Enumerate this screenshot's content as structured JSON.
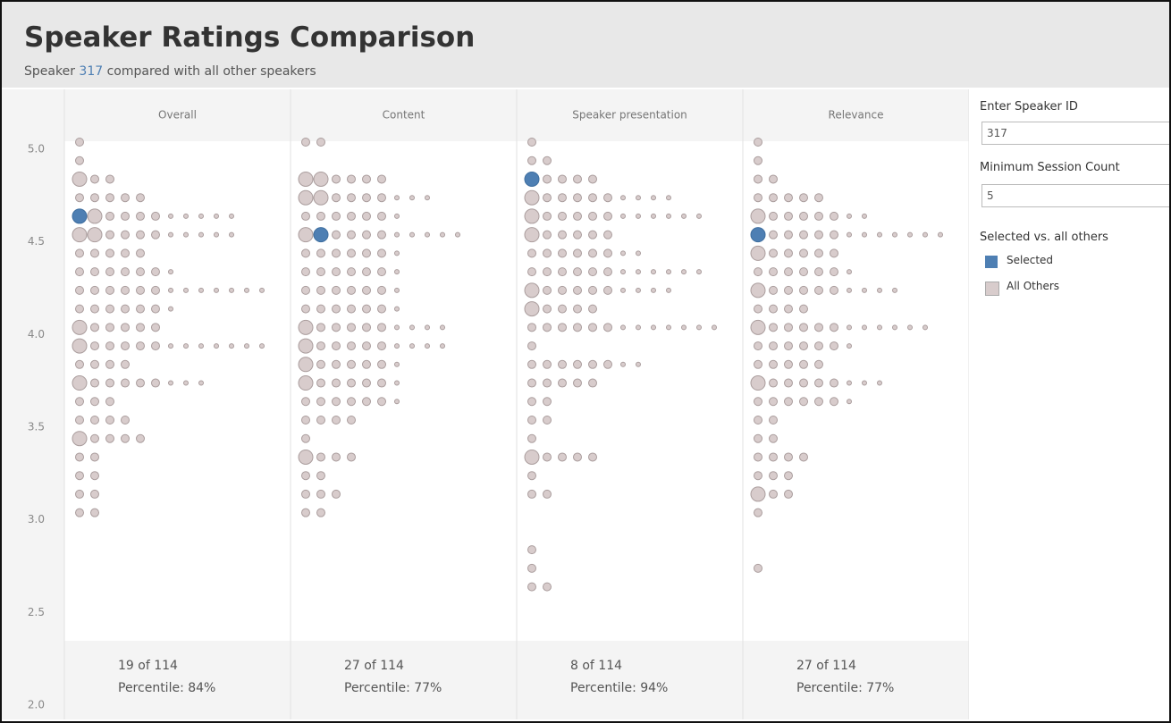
{
  "header": {
    "title": "Speaker Ratings Comparison",
    "subtitle_parts": [
      "Speaker ",
      "317",
      " compared with all other speakers"
    ]
  },
  "chart_data": {
    "type": "dotplot",
    "ylim": [
      2,
      5
    ],
    "yticks": [
      {
        "value": 5,
        "label": "5.0"
      },
      4.5,
      {
        "value": 4,
        "label": "4.0"
      },
      3.5,
      {
        "value": 3,
        "label": "3.0"
      },
      2.5,
      {
        "value": 2,
        "label": "2.0"
      }
    ],
    "other_color": "#d8cccc",
    "selected_color": "#4e7fb3",
    "panels": [
      {
        "name": "Overall",
        "rank": "19 of 114",
        "percentile": "Percentile: 84%",
        "rows": [
          {
            "rating": 5.0,
            "n": 1,
            "big": 0
          },
          {
            "rating": 4.9,
            "n": 1,
            "big": 0
          },
          {
            "rating": 4.8,
            "n": 3,
            "big": 1
          },
          {
            "rating": 4.7,
            "n": 5,
            "big": 0
          },
          {
            "rating": 4.6,
            "n": 11,
            "big": 2,
            "selected": 0
          },
          {
            "rating": 4.5,
            "n": 11,
            "big": 2
          },
          {
            "rating": 4.4,
            "n": 5,
            "big": 0
          },
          {
            "rating": 4.3,
            "n": 7,
            "big": 0
          },
          {
            "rating": 4.2,
            "n": 13,
            "big": 0
          },
          {
            "rating": 4.1,
            "n": 7,
            "big": 0
          },
          {
            "rating": 4.0,
            "n": 6,
            "big": 1
          },
          {
            "rating": 3.9,
            "n": 13,
            "big": 1
          },
          {
            "rating": 3.8,
            "n": 4,
            "big": 0
          },
          {
            "rating": 3.7,
            "n": 9,
            "big": 1
          },
          {
            "rating": 3.6,
            "n": 3,
            "big": 0
          },
          {
            "rating": 3.5,
            "n": 4,
            "big": 0
          },
          {
            "rating": 3.4,
            "n": 5,
            "big": 1
          },
          {
            "rating": 3.3,
            "n": 2,
            "big": 0
          },
          {
            "rating": 3.2,
            "n": 2,
            "big": 0
          },
          {
            "rating": 3.1,
            "n": 2,
            "big": 0
          },
          {
            "rating": 3.0,
            "n": 2,
            "big": 0
          }
        ]
      },
      {
        "name": "Content",
        "rank": "27 of 114",
        "percentile": "Percentile: 77%",
        "rows": [
          {
            "rating": 5.0,
            "n": 2,
            "big": 0
          },
          {
            "rating": 4.8,
            "n": 6,
            "big": 2
          },
          {
            "rating": 4.7,
            "n": 9,
            "big": 2
          },
          {
            "rating": 4.6,
            "n": 7,
            "big": 0
          },
          {
            "rating": 4.5,
            "n": 11,
            "big": 1,
            "selected": 1
          },
          {
            "rating": 4.4,
            "n": 7,
            "big": 0
          },
          {
            "rating": 4.3,
            "n": 7,
            "big": 0
          },
          {
            "rating": 4.2,
            "n": 7,
            "big": 0
          },
          {
            "rating": 4.1,
            "n": 7,
            "big": 0
          },
          {
            "rating": 4.0,
            "n": 10,
            "big": 1
          },
          {
            "rating": 3.9,
            "n": 10,
            "big": 1
          },
          {
            "rating": 3.8,
            "n": 7,
            "big": 1
          },
          {
            "rating": 3.7,
            "n": 7,
            "big": 1
          },
          {
            "rating": 3.6,
            "n": 7,
            "big": 0
          },
          {
            "rating": 3.5,
            "n": 4,
            "big": 0
          },
          {
            "rating": 3.4,
            "n": 1,
            "big": 0
          },
          {
            "rating": 3.3,
            "n": 4,
            "big": 1
          },
          {
            "rating": 3.2,
            "n": 2,
            "big": 0
          },
          {
            "rating": 3.1,
            "n": 3,
            "big": 0
          },
          {
            "rating": 3.0,
            "n": 2,
            "big": 0
          }
        ]
      },
      {
        "name": "Speaker presentation",
        "rank": "8 of 114",
        "percentile": "Percentile: 94%",
        "rows": [
          {
            "rating": 5.0,
            "n": 1,
            "big": 0
          },
          {
            "rating": 4.9,
            "n": 2,
            "big": 0
          },
          {
            "rating": 4.8,
            "n": 5,
            "big": 1,
            "selected": 0
          },
          {
            "rating": 4.7,
            "n": 10,
            "big": 1
          },
          {
            "rating": 4.6,
            "n": 12,
            "big": 1
          },
          {
            "rating": 4.5,
            "n": 6,
            "big": 1
          },
          {
            "rating": 4.4,
            "n": 8,
            "big": 0
          },
          {
            "rating": 4.3,
            "n": 12,
            "big": 0
          },
          {
            "rating": 4.2,
            "n": 10,
            "big": 1
          },
          {
            "rating": 4.1,
            "n": 5,
            "big": 1
          },
          {
            "rating": 4.0,
            "n": 13,
            "big": 0
          },
          {
            "rating": 3.9,
            "n": 1,
            "big": 0
          },
          {
            "rating": 3.8,
            "n": 8,
            "big": 0
          },
          {
            "rating": 3.7,
            "n": 5,
            "big": 0
          },
          {
            "rating": 3.6,
            "n": 2,
            "big": 0
          },
          {
            "rating": 3.5,
            "n": 2,
            "big": 0
          },
          {
            "rating": 3.4,
            "n": 1,
            "big": 0
          },
          {
            "rating": 3.3,
            "n": 5,
            "big": 1
          },
          {
            "rating": 3.2,
            "n": 1,
            "big": 0
          },
          {
            "rating": 3.1,
            "n": 2,
            "big": 0
          },
          {
            "rating": 2.8,
            "n": 1,
            "big": 0
          },
          {
            "rating": 2.7,
            "n": 1,
            "big": 0
          },
          {
            "rating": 2.6,
            "n": 2,
            "big": 0
          }
        ]
      },
      {
        "name": "Relevance",
        "rank": "27 of 114",
        "percentile": "Percentile: 77%",
        "rows": [
          {
            "rating": 5.0,
            "n": 1,
            "big": 0
          },
          {
            "rating": 4.9,
            "n": 1,
            "big": 0
          },
          {
            "rating": 4.8,
            "n": 2,
            "big": 0
          },
          {
            "rating": 4.7,
            "n": 5,
            "big": 0
          },
          {
            "rating": 4.6,
            "n": 8,
            "big": 1
          },
          {
            "rating": 4.5,
            "n": 13,
            "big": 1,
            "selected": 0
          },
          {
            "rating": 4.4,
            "n": 6,
            "big": 1
          },
          {
            "rating": 4.3,
            "n": 7,
            "big": 0
          },
          {
            "rating": 4.2,
            "n": 10,
            "big": 1
          },
          {
            "rating": 4.1,
            "n": 4,
            "big": 0
          },
          {
            "rating": 4.0,
            "n": 12,
            "big": 1
          },
          {
            "rating": 3.9,
            "n": 7,
            "big": 0
          },
          {
            "rating": 3.8,
            "n": 5,
            "big": 0
          },
          {
            "rating": 3.7,
            "n": 9,
            "big": 1
          },
          {
            "rating": 3.6,
            "n": 7,
            "big": 0
          },
          {
            "rating": 3.5,
            "n": 2,
            "big": 0
          },
          {
            "rating": 3.4,
            "n": 2,
            "big": 0
          },
          {
            "rating": 3.3,
            "n": 4,
            "big": 0
          },
          {
            "rating": 3.2,
            "n": 3,
            "big": 0
          },
          {
            "rating": 3.1,
            "n": 3,
            "big": 1
          },
          {
            "rating": 3.0,
            "n": 1,
            "big": 0
          },
          {
            "rating": 2.7,
            "n": 1,
            "big": 0
          }
        ]
      }
    ]
  },
  "sidebar": {
    "speaker_label": "Enter Speaker ID",
    "speaker_value": "317",
    "min_label": "Minimum Session Count",
    "min_value": "5",
    "legend_title": "Selected vs. all others",
    "legend": [
      "Selected",
      "All Others"
    ]
  }
}
